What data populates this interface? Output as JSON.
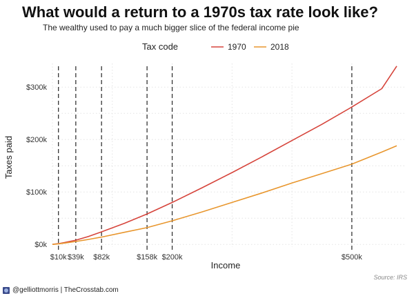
{
  "header": {
    "title": "What would a return to a 1970s tax rate look like?",
    "subtitle": "The wealthy used to pay a much bigger slice of the federal income pie"
  },
  "legend": {
    "title": "Tax code",
    "position": "top"
  },
  "footer": {
    "credit": "@gelliottmorris | TheCrosstab.com",
    "source": "Source: IRS"
  },
  "colors": {
    "series_1970": "#d6443b",
    "series_2018": "#e8962d",
    "markers": "#333333",
    "grid": "#e3e3e3"
  },
  "chart_data": {
    "type": "line",
    "title": "What would a return to a 1970s tax rate look like?",
    "subtitle": "The wealthy used to pay a much bigger slice of the federal income pie",
    "xlabel": "Income",
    "ylabel": "Taxes paid",
    "xlim": [
      0,
      590000
    ],
    "ylim": [
      -5000,
      345000
    ],
    "y_ticks": [
      0,
      100000,
      200000,
      300000
    ],
    "y_tick_labels": [
      "$0k",
      "$100k",
      "$200k",
      "$300k"
    ],
    "markers": [
      10000,
      39000,
      82000,
      158000,
      200000,
      500000
    ],
    "marker_labels": [
      "$10k",
      "$39k",
      "$82k",
      "$158k",
      "$200k",
      "$500k"
    ],
    "grid": true,
    "series": [
      {
        "name": "1970",
        "x": [
          0,
          10000,
          20000,
          39000,
          60000,
          82000,
          120000,
          158000,
          200000,
          250000,
          300000,
          350000,
          400000,
          450000,
          500000,
          550000,
          575000
        ],
        "y": [
          0,
          1500,
          3500,
          8000,
          15000,
          24000,
          40000,
          58000,
          80000,
          108000,
          137000,
          167000,
          198000,
          229000,
          262000,
          297000,
          340000
        ]
      },
      {
        "name": "2018",
        "x": [
          0,
          10000,
          20000,
          39000,
          60000,
          82000,
          120000,
          158000,
          200000,
          250000,
          300000,
          350000,
          400000,
          450000,
          500000,
          550000,
          575000
        ],
        "y": [
          0,
          1000,
          2500,
          5500,
          9500,
          14000,
          23000,
          32000,
          45000,
          62000,
          80000,
          98000,
          117000,
          135000,
          153000,
          176000,
          188000
        ]
      }
    ]
  }
}
